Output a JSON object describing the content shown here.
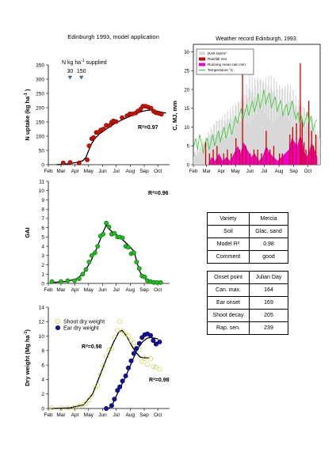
{
  "main_title": "Edinburgh 1993, model application",
  "weather_title": "Weather record Edinburgh, 1993",
  "months": [
    "Feb",
    "Mar",
    "Apr",
    "May",
    "Jun",
    "Jul",
    "Aug",
    "Sep",
    "Oct"
  ],
  "variety_table": [
    [
      "Variety",
      "Mercia"
    ],
    [
      "Soil",
      "Glac. sand"
    ],
    [
      "Model R²",
      "0.98"
    ],
    [
      "Comment",
      "good"
    ]
  ],
  "onset_table": [
    [
      "Onset point",
      "Julian Day"
    ],
    [
      "Can. max.",
      "164"
    ],
    [
      "Ear onset",
      "169"
    ],
    [
      "Shoot decay",
      "205"
    ],
    [
      "Rap. sen.",
      "239"
    ]
  ],
  "colors": {
    "n_dots": "#cc1100",
    "gai_dots": "#22bb22",
    "shoot_dots": "#dddd44",
    "ear_dots": "#11119a",
    "rad": "#d8d8d8",
    "rain": "#cc0000",
    "runmean": "#ee00cc",
    "temp": "#33cc33"
  },
  "chart_data": [
    {
      "type": "scatter",
      "name": "n_uptake",
      "ylabel": "N uptake (kg ha⁻¹ )",
      "ylim": [
        0,
        350
      ],
      "yticks": [
        0,
        50,
        100,
        150,
        200,
        250,
        300,
        350
      ],
      "xlim": [
        32,
        300
      ],
      "annotation_text": "R²=0.97",
      "supply_label": "N kg ha⁻¹ supplied",
      "supply_events": [
        {
          "day": 80,
          "value": "30"
        },
        {
          "day": 105,
          "value": "150"
        }
      ],
      "points": [
        [
          65,
          6
        ],
        [
          80,
          8
        ],
        [
          100,
          6
        ],
        [
          118,
          17
        ],
        [
          122,
          66
        ],
        [
          128,
          91
        ],
        [
          132,
          95
        ],
        [
          138,
          113
        ],
        [
          142,
          113
        ],
        [
          148,
          122
        ],
        [
          154,
          125
        ],
        [
          160,
          138
        ],
        [
          168,
          138
        ],
        [
          172,
          149
        ],
        [
          176,
          154
        ],
        [
          182,
          151
        ],
        [
          195,
          165
        ],
        [
          206,
          172
        ],
        [
          212,
          178
        ],
        [
          218,
          178
        ],
        [
          225,
          181
        ],
        [
          230,
          188
        ],
        [
          236,
          195
        ],
        [
          241,
          205
        ],
        [
          247,
          205
        ],
        [
          253,
          202
        ],
        [
          259,
          198
        ],
        [
          265,
          187
        ],
        [
          270,
          182
        ],
        [
          276,
          180
        ],
        [
          282,
          177
        ]
      ],
      "model": [
        [
          50,
          0
        ],
        [
          75,
          3
        ],
        [
          95,
          8
        ],
        [
          108,
          14
        ],
        [
          115,
          25
        ],
        [
          120,
          45
        ],
        [
          127,
          72
        ],
        [
          135,
          92
        ],
        [
          145,
          108
        ],
        [
          160,
          125
        ],
        [
          180,
          146
        ],
        [
          200,
          161
        ],
        [
          220,
          175
        ],
        [
          235,
          185
        ],
        [
          248,
          190
        ],
        [
          260,
          192
        ],
        [
          272,
          188
        ],
        [
          285,
          183
        ],
        [
          292,
          181
        ]
      ]
    },
    {
      "type": "line",
      "name": "weather",
      "ylabel": "C, MJ, mm",
      "ylim": [
        0,
        32
      ],
      "yticks": [
        0,
        5,
        10,
        15,
        20,
        25,
        30
      ],
      "xlim": [
        32,
        300
      ],
      "legend": [
        "RAR MJ/m²",
        "Rainfall mm",
        "Running mean rain mm",
        "Temperature °C"
      ],
      "radiation_envelope": [
        [
          32,
          3
        ],
        [
          45,
          5
        ],
        [
          60,
          8
        ],
        [
          80,
          12
        ],
        [
          95,
          13
        ],
        [
          110,
          15
        ],
        [
          125,
          17
        ],
        [
          140,
          19
        ],
        [
          150,
          24
        ],
        [
          160,
          23
        ],
        [
          170,
          24
        ],
        [
          180,
          23
        ],
        [
          195,
          24
        ],
        [
          210,
          22
        ],
        [
          220,
          21
        ],
        [
          235,
          22
        ],
        [
          250,
          18
        ],
        [
          265,
          16
        ],
        [
          280,
          13
        ],
        [
          295,
          9
        ]
      ],
      "temperature": [
        [
          33,
          5
        ],
        [
          37,
          7
        ],
        [
          41,
          4
        ],
        [
          45,
          8
        ],
        [
          49,
          6
        ],
        [
          53,
          3
        ],
        [
          57,
          6
        ],
        [
          61,
          7
        ],
        [
          65,
          4
        ],
        [
          69,
          6
        ],
        [
          73,
          8
        ],
        [
          77,
          5
        ],
        [
          81,
          7
        ],
        [
          85,
          9
        ],
        [
          89,
          6
        ],
        [
          93,
          8
        ],
        [
          97,
          10
        ],
        [
          101,
          7
        ],
        [
          105,
          9
        ],
        [
          109,
          11
        ],
        [
          113,
          8
        ],
        [
          117,
          10
        ],
        [
          121,
          13
        ],
        [
          125,
          11
        ],
        [
          129,
          13
        ],
        [
          133,
          15
        ],
        [
          137,
          12
        ],
        [
          141,
          14
        ],
        [
          145,
          16
        ],
        [
          149,
          13
        ],
        [
          153,
          15
        ],
        [
          157,
          17
        ],
        [
          161,
          14
        ],
        [
          165,
          16
        ],
        [
          169,
          19
        ],
        [
          173,
          15
        ],
        [
          177,
          17
        ],
        [
          181,
          20
        ],
        [
          185,
          16
        ],
        [
          189,
          18
        ],
        [
          193,
          19
        ],
        [
          197,
          15
        ],
        [
          201,
          17
        ],
        [
          205,
          18
        ],
        [
          209,
          14
        ],
        [
          213,
          16
        ],
        [
          217,
          17
        ],
        [
          221,
          13
        ],
        [
          225,
          15
        ],
        [
          229,
          16
        ],
        [
          233,
          13
        ],
        [
          237,
          15
        ],
        [
          241,
          17
        ],
        [
          245,
          14
        ],
        [
          249,
          12
        ],
        [
          253,
          14
        ],
        [
          257,
          11
        ],
        [
          261,
          13
        ],
        [
          265,
          10
        ],
        [
          269,
          12
        ],
        [
          273,
          14
        ],
        [
          277,
          11
        ],
        [
          281,
          13
        ],
        [
          285,
          9
        ],
        [
          289,
          11
        ],
        [
          293,
          12
        ]
      ],
      "rainfall": [
        [
          58,
          6
        ],
        [
          66,
          3
        ],
        [
          74,
          4
        ],
        [
          82,
          5
        ],
        [
          88,
          2
        ],
        [
          96,
          3
        ],
        [
          104,
          4
        ],
        [
          112,
          3
        ],
        [
          122,
          7
        ],
        [
          130,
          4
        ],
        [
          136,
          28
        ],
        [
          143,
          5
        ],
        [
          152,
          3
        ],
        [
          160,
          4
        ],
        [
          168,
          4
        ],
        [
          176,
          3
        ],
        [
          186,
          9
        ],
        [
          194,
          4
        ],
        [
          202,
          5
        ],
        [
          214,
          3
        ],
        [
          220,
          3
        ],
        [
          236,
          8
        ],
        [
          242,
          10
        ],
        [
          250,
          11
        ],
        [
          258,
          27
        ],
        [
          262,
          12
        ],
        [
          266,
          6
        ],
        [
          270,
          4
        ],
        [
          276,
          17
        ],
        [
          282,
          9
        ],
        [
          286,
          5
        ],
        [
          291,
          8
        ]
      ],
      "running_mean": [
        [
          40,
          0
        ],
        [
          64,
          0
        ],
        [
          70,
          2
        ],
        [
          78,
          1
        ],
        [
          86,
          3
        ],
        [
          94,
          1
        ],
        [
          102,
          2
        ],
        [
          110,
          1
        ],
        [
          118,
          3
        ],
        [
          126,
          5
        ],
        [
          132,
          3
        ],
        [
          138,
          6
        ],
        [
          146,
          4
        ],
        [
          154,
          2
        ],
        [
          162,
          3
        ],
        [
          170,
          1
        ],
        [
          178,
          2
        ],
        [
          186,
          5
        ],
        [
          194,
          3
        ],
        [
          202,
          2
        ],
        [
          210,
          1
        ],
        [
          218,
          2
        ],
        [
          226,
          3
        ],
        [
          234,
          4
        ],
        [
          240,
          7
        ],
        [
          246,
          6
        ],
        [
          252,
          5
        ],
        [
          258,
          8
        ],
        [
          264,
          5
        ],
        [
          270,
          2
        ],
        [
          276,
          3
        ],
        [
          282,
          6
        ],
        [
          288,
          4
        ],
        [
          294,
          2
        ]
      ]
    },
    {
      "type": "scatter",
      "name": "gai",
      "ylabel": "GAI",
      "ylim": [
        0,
        11
      ],
      "yticks": [
        0,
        1,
        2,
        3,
        4,
        5,
        6,
        7,
        8,
        9,
        10,
        11
      ],
      "xlim": [
        32,
        300
      ],
      "annotation_text": "R²=0.96",
      "points": [
        [
          40,
          0.2
        ],
        [
          60,
          0.2
        ],
        [
          75,
          0.3
        ],
        [
          90,
          0.3
        ],
        [
          100,
          0.5
        ],
        [
          108,
          1.0
        ],
        [
          115,
          1.5
        ],
        [
          122,
          2.3
        ],
        [
          128,
          3.0
        ],
        [
          135,
          3.3
        ],
        [
          141,
          4.0
        ],
        [
          147,
          5.1
        ],
        [
          153,
          5.3
        ],
        [
          160,
          6.5
        ],
        [
          166,
          6.1
        ],
        [
          172,
          5.3
        ],
        [
          178,
          5.4
        ],
        [
          185,
          5.0
        ],
        [
          190,
          5.0
        ],
        [
          196,
          4.9
        ],
        [
          203,
          4.0
        ],
        [
          209,
          3.9
        ],
        [
          215,
          3.2
        ],
        [
          221,
          3.3
        ],
        [
          227,
          2.3
        ],
        [
          233,
          1.6
        ],
        [
          239,
          0.8
        ],
        [
          245,
          0.7
        ],
        [
          251,
          0.3
        ],
        [
          258,
          0.2
        ],
        [
          265,
          0.1
        ],
        [
          272,
          0.1
        ],
        [
          280,
          0.1
        ]
      ],
      "model": [
        [
          40,
          0.1
        ],
        [
          70,
          0.2
        ],
        [
          95,
          0.5
        ],
        [
          110,
          1.1
        ],
        [
          125,
          2.3
        ],
        [
          140,
          3.9
        ],
        [
          152,
          5.4
        ],
        [
          160,
          6.3
        ],
        [
          165,
          5.9
        ],
        [
          175,
          5.5
        ],
        [
          190,
          5.0
        ],
        [
          205,
          4.3
        ],
        [
          215,
          3.8
        ],
        [
          222,
          3.4
        ],
        [
          228,
          2.2
        ],
        [
          235,
          1.2
        ],
        [
          242,
          0.6
        ],
        [
          255,
          0.3
        ],
        [
          270,
          0.2
        ],
        [
          285,
          0.15
        ]
      ]
    },
    {
      "type": "scatter",
      "name": "dry_weight",
      "ylabel": "Dry weight (Mg ha⁻¹)",
      "ylim": [
        0,
        14
      ],
      "yticks": [
        0,
        2,
        4,
        6,
        8,
        10,
        12,
        14
      ],
      "xlim": [
        32,
        300
      ],
      "legend": [
        "Shoot dry weight",
        "Ear dry weight"
      ],
      "annotation_shoot": "R²=0.98",
      "annotation_ear": "R²=0.98",
      "shoot_points": [
        [
          40,
          0.1
        ],
        [
          60,
          0.1
        ],
        [
          75,
          0.1
        ],
        [
          90,
          0.2
        ],
        [
          100,
          0.3
        ],
        [
          108,
          0.5
        ],
        [
          115,
          0.7
        ],
        [
          122,
          1.2
        ],
        [
          128,
          1.8
        ],
        [
          135,
          2.8
        ],
        [
          141,
          3.2
        ],
        [
          147,
          4.7
        ],
        [
          153,
          5.9
        ],
        [
          160,
          7.2
        ],
        [
          166,
          8.1
        ],
        [
          172,
          8.3
        ],
        [
          178,
          9.8
        ],
        [
          185,
          10.8
        ],
        [
          190,
          12.0
        ],
        [
          196,
          10.7
        ],
        [
          203,
          10.2
        ],
        [
          209,
          10.1
        ],
        [
          215,
          9.4
        ],
        [
          221,
          9.1
        ],
        [
          227,
          8.5
        ],
        [
          233,
          8.1
        ],
        [
          239,
          6.5
        ],
        [
          245,
          6.9
        ],
        [
          251,
          6.1
        ],
        [
          258,
          6.9
        ],
        [
          264,
          5.8
        ],
        [
          270,
          5.7
        ],
        [
          278,
          5.4
        ]
      ],
      "shoot_model": [
        [
          40,
          0
        ],
        [
          80,
          0.1
        ],
        [
          110,
          0.5
        ],
        [
          130,
          2.0
        ],
        [
          145,
          4.4
        ],
        [
          160,
          6.8
        ],
        [
          175,
          9.0
        ],
        [
          188,
          10.6
        ],
        [
          195,
          10.8
        ],
        [
          205,
          10.0
        ],
        [
          215,
          8.8
        ],
        [
          225,
          7.8
        ],
        [
          235,
          7.1
        ],
        [
          245,
          7.0
        ],
        [
          255,
          7.0
        ]
      ],
      "ear_points": [
        [
          160,
          0.0
        ],
        [
          172,
          0.4
        ],
        [
          178,
          1.3
        ],
        [
          185,
          2.5
        ],
        [
          190,
          3.0
        ],
        [
          196,
          3.8
        ],
        [
          203,
          4.5
        ],
        [
          209,
          5.6
        ],
        [
          215,
          6.6
        ],
        [
          221,
          7.6
        ],
        [
          227,
          8.3
        ],
        [
          233,
          9.0
        ],
        [
          239,
          9.8
        ],
        [
          245,
          10.2
        ],
        [
          251,
          10.3
        ],
        [
          258,
          10.1
        ],
        [
          264,
          9.4
        ],
        [
          270,
          8.9
        ],
        [
          278,
          9.2
        ]
      ],
      "ear_model": [
        [
          165,
          0
        ],
        [
          172,
          0.3
        ],
        [
          182,
          1.7
        ],
        [
          192,
          3.0
        ],
        [
          202,
          4.3
        ],
        [
          215,
          6.2
        ],
        [
          228,
          8.1
        ],
        [
          240,
          9.2
        ],
        [
          250,
          9.7
        ],
        [
          258,
          9.8
        ],
        [
          268,
          9.7
        ],
        [
          275,
          9.6
        ]
      ]
    }
  ]
}
